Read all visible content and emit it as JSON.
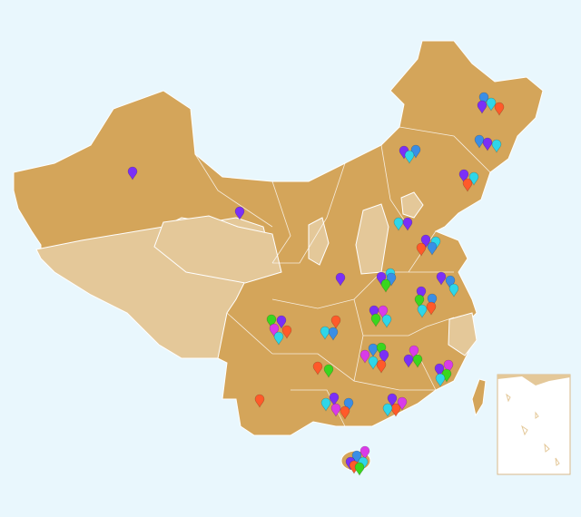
{
  "map": {
    "marker_colors": [
      "#3a8ee6",
      "#2fd6e8",
      "#7b2ff7",
      "#ff5a2a",
      "#3a8ee6",
      "#7b2ff7",
      "#2fd6e8",
      "#7b2ff7",
      "#2fd6e8",
      "#ff5a2a",
      "#7b2ff7",
      "#3a8ee6",
      "#2fd6e8",
      "#7b2ff7",
      "#7b2ff7",
      "#2fd6e8",
      "#7b2ff7",
      "#7b2ff7",
      "#2fd6e8",
      "#3a8ee6",
      "#ff5a2a",
      "#7b2ff7",
      "#7b2ff7",
      "#2fd6e8",
      "#3a8ee6",
      "#3ad61e",
      "#7b2ff7",
      "#3a8ee6",
      "#2fd6e8",
      "#7b2ff7",
      "#3ad61e",
      "#3a8ee6",
      "#ff5a2a",
      "#2fd6e8",
      "#7b2ff7",
      "#d93be8",
      "#3ad61e",
      "#2fd6e8",
      "#3ad61e",
      "#7b2ff7",
      "#d93be8",
      "#ff5a2a",
      "#2fd6e8",
      "#ff5a2a",
      "#2fd6e8",
      "#3a8ee6",
      "#3a8ee6",
      "#3ad61e",
      "#d93be8",
      "#7b2ff7",
      "#2fd6e8",
      "#ff5a2a",
      "#d93be8",
      "#7b2ff7",
      "#3ad61e",
      "#d93be8",
      "#7b2ff7",
      "#3ad61e",
      "#2fd6e8",
      "#ff5a2a",
      "#3ad61e",
      "#ff5a2a",
      "#7b2ff7",
      "#3a8ee6",
      "#2fd6e8",
      "#d93be8",
      "#ff5a2a",
      "#7b2ff7",
      "#d93be8",
      "#ff5a2a",
      "#2fd6e8",
      "#d93be8",
      "#3a8ee6",
      "#7b2ff7",
      "#2fd6e8",
      "#ff5a2a",
      "#3ad61e"
    ]
  }
}
